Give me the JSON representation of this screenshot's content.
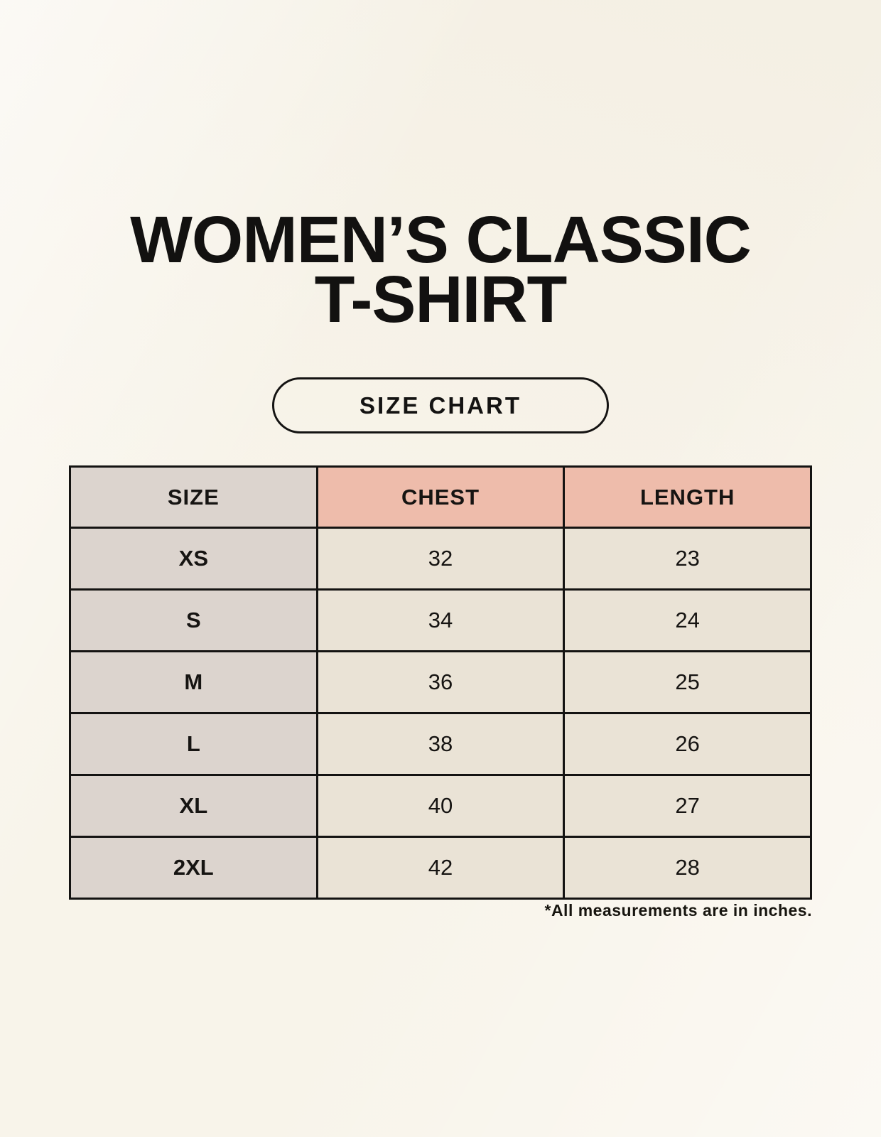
{
  "page": {
    "title_line1": "WOMEN’S CLASSIC",
    "title_line2": "T-SHIRT",
    "badge_label": "SIZE CHART"
  },
  "size_chart": {
    "columns": [
      "SIZE",
      "CHEST",
      "LENGTH"
    ],
    "rows": [
      [
        "XS",
        "32",
        "23"
      ],
      [
        "S",
        "34",
        "24"
      ],
      [
        "M",
        "36",
        "25"
      ],
      [
        "L",
        "38",
        "26"
      ],
      [
        "XL",
        "40",
        "27"
      ],
      [
        "2XL",
        "42",
        "28"
      ]
    ],
    "units_note": "*All measurements are in inches."
  },
  "colors": {
    "background": "#f8f4ea",
    "size_column": "#dcd4ce",
    "measure_header": "#eebcab",
    "data_cell": "#eae3d6",
    "border": "#141312",
    "text": "#141312"
  }
}
